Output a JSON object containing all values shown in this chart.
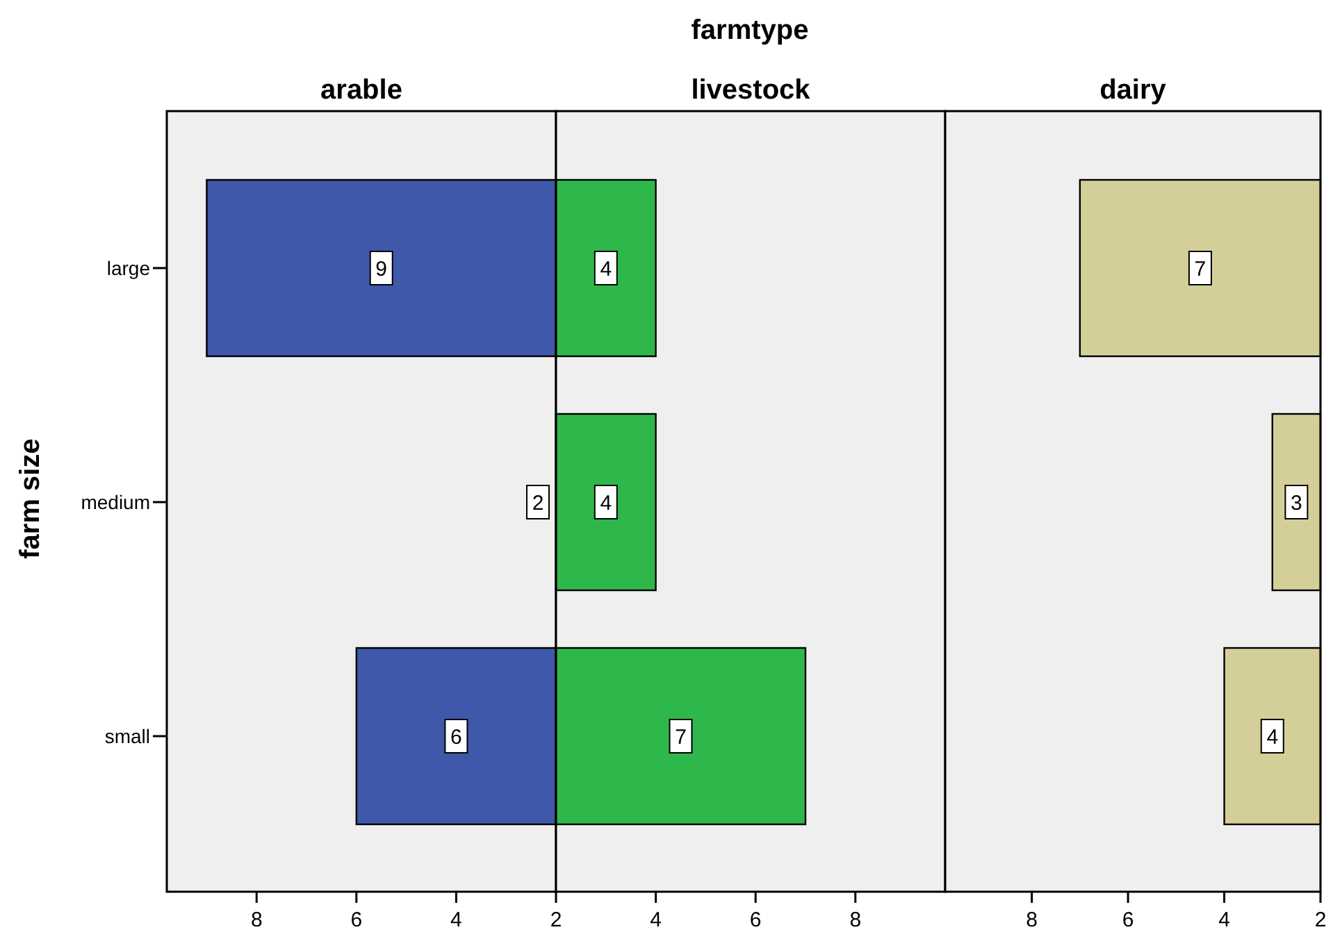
{
  "chart_data": [
    {
      "type": "bar",
      "orientation": "horizontal",
      "title": "arable",
      "ylabel": "farm size",
      "annotations": [
        "farmtype"
      ],
      "categories": [
        "large",
        "medium",
        "small"
      ],
      "values": [
        9,
        2,
        6
      ],
      "color": "#3f58a9",
      "xlim": [
        9.8,
        2
      ],
      "xticks": [
        8,
        6,
        4,
        2
      ],
      "data_labels": true
    },
    {
      "type": "bar",
      "orientation": "horizontal",
      "title": "livestock",
      "categories": [
        null,
        null,
        null
      ],
      "values": [
        4,
        4,
        7
      ],
      "color": "#2eb84b",
      "xlim": [
        2,
        9.8
      ],
      "xticks": [
        4,
        6,
        8
      ],
      "data_labels": true,
      "tick_labels": "x"
    },
    {
      "type": "bar",
      "orientation": "horizontal",
      "title": "dairy",
      "categories": [
        null,
        null,
        null
      ],
      "values": [
        7,
        3,
        4
      ],
      "color": "#d4cf99",
      "xlim": [
        9.8,
        2
      ],
      "xticks": [
        8,
        6,
        4,
        2
      ],
      "data_labels": true,
      "tick_labels": "x"
    }
  ]
}
